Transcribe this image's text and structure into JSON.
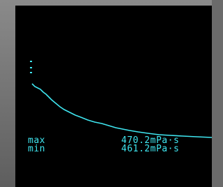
{
  "screen": {
    "labels": {
      "max": "max",
      "min": "min"
    },
    "readings": {
      "max": "470.2mPa·s",
      "min": "461.2mPa·s"
    }
  }
}
